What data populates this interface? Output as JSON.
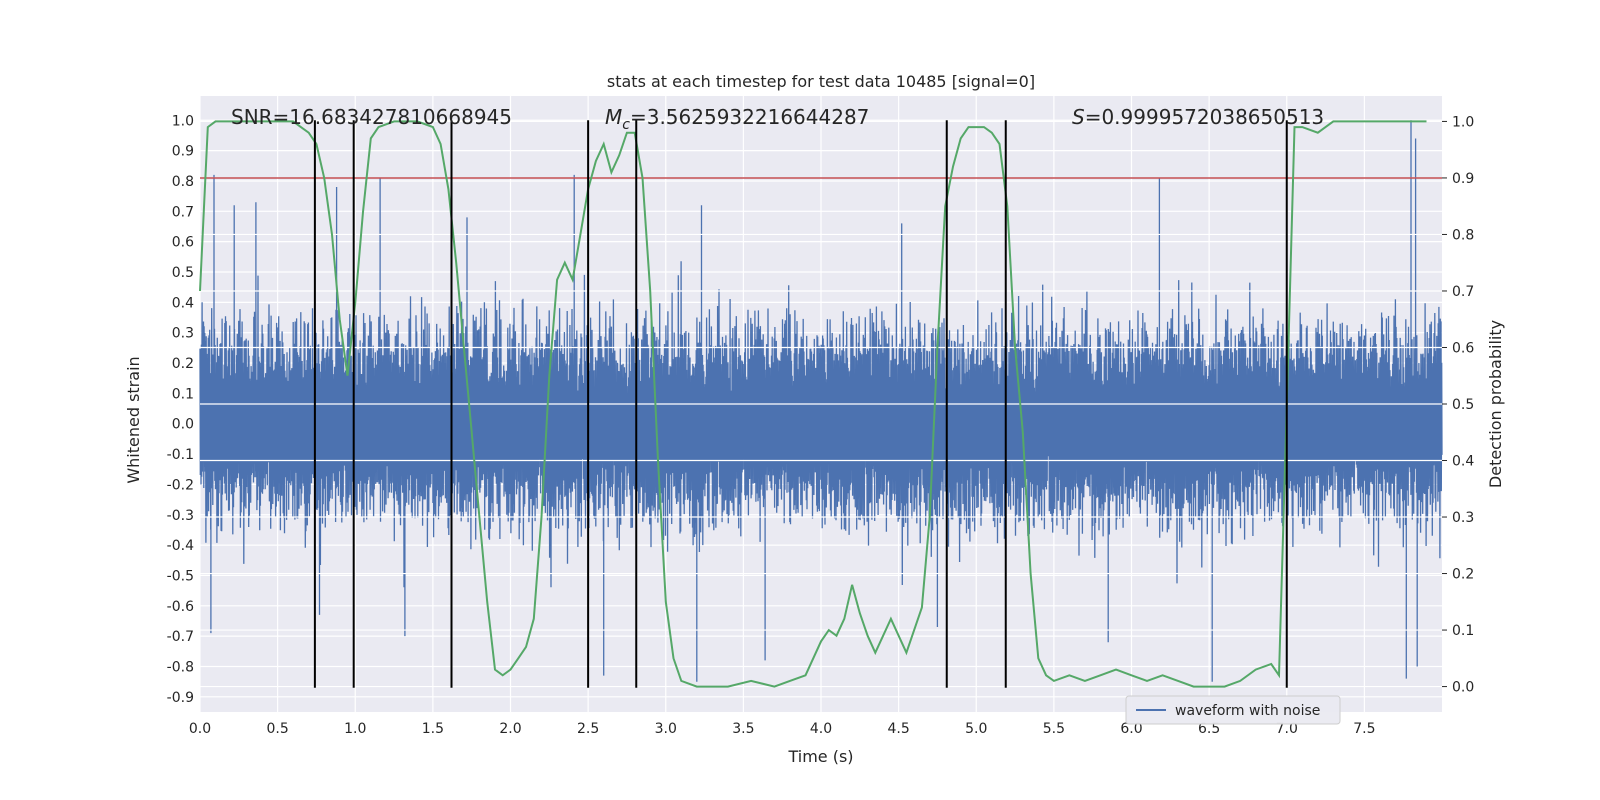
{
  "chart_data": {
    "type": "line",
    "title": "stats at each timestep for test data 10485 [signal=0]",
    "xlabel": "Time (s)",
    "ylabel": "Whitened strain",
    "ylabel_right": "Detection probability",
    "xlim": [
      0.0,
      8.0
    ],
    "ylim": [
      -0.95,
      1.08
    ],
    "ylim_right": [
      -0.045,
      1.045
    ],
    "x_ticks": [
      "0.0",
      "0.5",
      "1.0",
      "1.5",
      "2.0",
      "2.5",
      "3.0",
      "3.5",
      "4.0",
      "4.5",
      "5.0",
      "5.5",
      "6.0",
      "6.5",
      "7.0",
      "7.5"
    ],
    "y_ticks": [
      "1.0",
      "0.9",
      "0.8",
      "0.7",
      "0.6",
      "0.5",
      "0.4",
      "0.3",
      "0.2",
      "0.1",
      "0.0",
      "-0.1",
      "-0.2",
      "-0.3",
      "-0.4",
      "-0.5",
      "-0.6",
      "-0.7",
      "-0.8",
      "-0.9"
    ],
    "y_ticks_right": [
      "1.0",
      "0.9",
      "0.8",
      "0.7",
      "0.6",
      "0.5",
      "0.4",
      "0.3",
      "0.2",
      "0.1",
      "0.0"
    ],
    "grid": true,
    "legend": {
      "entries": [
        "waveform with noise"
      ],
      "position": "lower-right"
    },
    "annotations": {
      "snr": "SNR=16.683427810668945",
      "mc_symbol": "M",
      "mc_sub": "c",
      "mc_value": "=3.5625932216644287",
      "s_symbol": "S",
      "s_value": "=0.9999572038650513"
    },
    "threshold_right": 0.9,
    "vertical_lines_x": [
      0.74,
      0.99,
      1.62,
      2.5,
      2.81,
      4.81,
      5.19,
      7.0
    ],
    "vertical_lines_range": [
      -0.87,
      1.0
    ],
    "waveform": {
      "name": "waveform with noise",
      "typical_envelope": 0.42,
      "spikes": [
        {
          "x": 0.09,
          "y": 0.82
        },
        {
          "x": 0.22,
          "y": 0.72
        },
        {
          "x": 0.36,
          "y": 0.73
        },
        {
          "x": 0.88,
          "y": 0.78
        },
        {
          "x": 1.16,
          "y": 0.81
        },
        {
          "x": 1.72,
          "y": 0.68
        },
        {
          "x": 2.41,
          "y": 0.82
        },
        {
          "x": 3.23,
          "y": 0.72
        },
        {
          "x": 4.52,
          "y": 0.66
        },
        {
          "x": 6.18,
          "y": 0.81
        },
        {
          "x": 7.8,
          "y": 1.0
        },
        {
          "x": 7.83,
          "y": 0.94
        },
        {
          "x": 0.07,
          "y": -0.69
        },
        {
          "x": 0.77,
          "y": -0.63
        },
        {
          "x": 1.32,
          "y": -0.7
        },
        {
          "x": 2.6,
          "y": -0.83
        },
        {
          "x": 3.2,
          "y": -0.85
        },
        {
          "x": 3.64,
          "y": -0.78
        },
        {
          "x": 4.75,
          "y": -0.67
        },
        {
          "x": 5.85,
          "y": -0.72
        },
        {
          "x": 6.52,
          "y": -0.85
        },
        {
          "x": 7.77,
          "y": -0.84
        },
        {
          "x": 7.84,
          "y": -0.8
        }
      ]
    },
    "detection_probability": {
      "x": [
        0.0,
        0.05,
        0.1,
        0.2,
        0.3,
        0.45,
        0.6,
        0.65,
        0.7,
        0.75,
        0.8,
        0.85,
        0.9,
        0.95,
        1.0,
        1.05,
        1.1,
        1.15,
        1.25,
        1.4,
        1.5,
        1.55,
        1.6,
        1.65,
        1.7,
        1.75,
        1.8,
        1.85,
        1.9,
        1.95,
        2.0,
        2.05,
        2.1,
        2.15,
        2.2,
        2.25,
        2.3,
        2.35,
        2.4,
        2.45,
        2.5,
        2.55,
        2.6,
        2.65,
        2.7,
        2.75,
        2.8,
        2.85,
        2.9,
        2.95,
        3.0,
        3.05,
        3.1,
        3.2,
        3.4,
        3.55,
        3.7,
        3.8,
        3.9,
        4.0,
        4.05,
        4.1,
        4.15,
        4.2,
        4.25,
        4.3,
        4.35,
        4.45,
        4.55,
        4.65,
        4.7,
        4.75,
        4.8,
        4.85,
        4.9,
        4.95,
        5.05,
        5.1,
        5.15,
        5.2,
        5.25,
        5.3,
        5.35,
        5.4,
        5.45,
        5.5,
        5.6,
        5.7,
        5.8,
        5.9,
        6.0,
        6.1,
        6.2,
        6.3,
        6.4,
        6.5,
        6.6,
        6.7,
        6.8,
        6.9,
        6.95,
        7.0,
        7.05,
        7.1,
        7.2,
        7.3,
        7.5,
        7.9
      ],
      "y": [
        0.7,
        0.99,
        1.0,
        1.0,
        1.0,
        1.0,
        1.0,
        0.99,
        0.98,
        0.96,
        0.9,
        0.8,
        0.65,
        0.55,
        0.68,
        0.84,
        0.97,
        0.99,
        1.0,
        1.0,
        0.99,
        0.96,
        0.88,
        0.75,
        0.6,
        0.45,
        0.3,
        0.15,
        0.03,
        0.02,
        0.03,
        0.05,
        0.07,
        0.12,
        0.3,
        0.55,
        0.72,
        0.75,
        0.72,
        0.8,
        0.88,
        0.93,
        0.96,
        0.91,
        0.94,
        0.98,
        0.98,
        0.9,
        0.7,
        0.4,
        0.15,
        0.05,
        0.01,
        0.0,
        0.0,
        0.01,
        0.0,
        0.01,
        0.02,
        0.08,
        0.1,
        0.09,
        0.12,
        0.18,
        0.13,
        0.09,
        0.06,
        0.12,
        0.06,
        0.14,
        0.3,
        0.6,
        0.85,
        0.92,
        0.97,
        0.99,
        0.99,
        0.98,
        0.96,
        0.85,
        0.6,
        0.45,
        0.2,
        0.05,
        0.02,
        0.01,
        0.02,
        0.01,
        0.02,
        0.03,
        0.02,
        0.01,
        0.02,
        0.01,
        0.0,
        0.0,
        0.0,
        0.01,
        0.03,
        0.04,
        0.02,
        0.5,
        0.99,
        0.99,
        0.98,
        1.0,
        1.0,
        1.0
      ]
    },
    "colors": {
      "background": "#eaeaf2",
      "waveform": "#4c72b0",
      "probability": "#55a868",
      "threshold": "#c44e52",
      "vlines": "#000000",
      "grid": "#ffffff"
    }
  }
}
